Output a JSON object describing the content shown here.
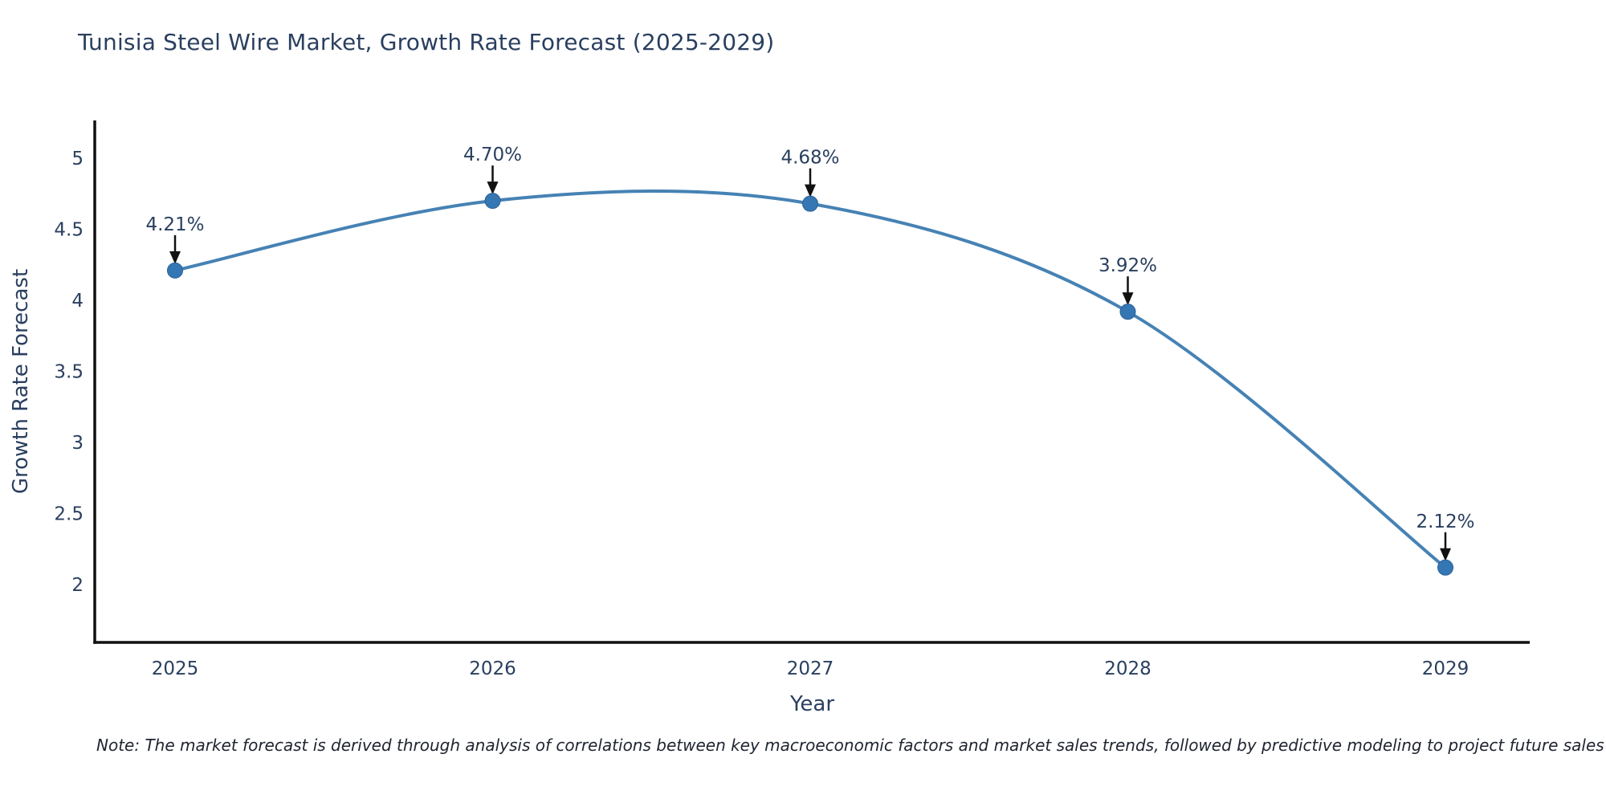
{
  "note": "Note: The market forecast is derived through analysis of correlations between key macroeconomic factors and market sales trends, followed by predictive modeling to project future sales",
  "chart_data": {
    "type": "line",
    "title": "Tunisia Steel Wire Market, Growth Rate Forecast (2025-2029)",
    "xlabel": "Year",
    "ylabel": "Growth Rate Forecast",
    "categories": [
      "2025",
      "2026",
      "2027",
      "2028",
      "2029"
    ],
    "values": [
      4.21,
      4.7,
      4.68,
      3.92,
      2.12
    ],
    "point_labels": [
      "4.21%",
      "4.70%",
      "4.68%",
      "3.92%",
      "2.12%"
    ],
    "y_ticks": [
      "2",
      "2.5",
      "3",
      "3.5",
      "4",
      "4.5",
      "5"
    ],
    "y_tick_values": [
      2,
      2.5,
      3,
      3.5,
      4,
      4.5,
      5
    ],
    "ylim": [
      1.6,
      5.26
    ],
    "grid": false,
    "legend": "none",
    "line_shape": "spline",
    "annotations": "value labels with down arrows above each point",
    "colors": {
      "line": "#4682b4",
      "marker": "#3577b3",
      "marker_edge": "#2a6099",
      "text": "#2a3f5f",
      "axis": "#111111",
      "arrow": "#111111"
    }
  }
}
